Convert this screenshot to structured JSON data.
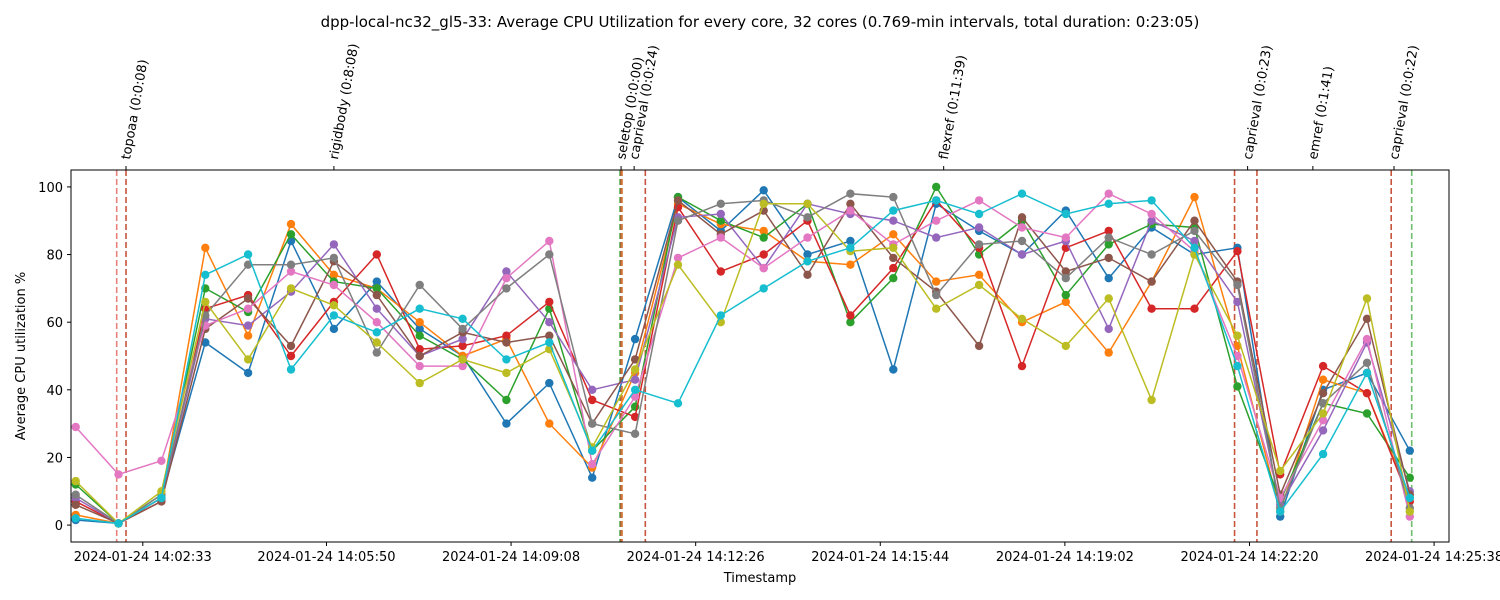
{
  "chart_data": {
    "type": "line",
    "title": "dpp-local-nc32_gl5-33: Average CPU Utilization for every core, 32 cores (0.769-min intervals, total duration: 0:23:05)",
    "xlabel": "Timestamp",
    "ylabel": "Average CPU utilization %",
    "xlim": [
      "2024-01-24 14:01:16",
      "2024-01-24 14:25:54"
    ],
    "ylim": [
      -5,
      105
    ],
    "x_ticks": [
      "2024-01-24 14:02:33",
      "2024-01-24 14:05:50",
      "2024-01-24 14:09:08",
      "2024-01-24 14:12:26",
      "2024-01-24 14:15:44",
      "2024-01-24 14:19:02",
      "2024-01-24 14:22:20",
      "2024-01-24 14:25:38"
    ],
    "y_ticks": [
      0,
      20,
      40,
      60,
      80,
      100
    ],
    "grid": false,
    "legend": "none",
    "x": [
      "14:01:21",
      "14:02:07",
      "14:02:53",
      "14:03:40",
      "14:04:26",
      "14:05:12",
      "14:05:58",
      "14:06:44",
      "14:07:30",
      "14:08:16",
      "14:09:03",
      "14:09:49",
      "14:10:35",
      "14:11:21",
      "14:12:07",
      "14:12:53",
      "14:13:39",
      "14:14:26",
      "14:15:12",
      "14:15:58",
      "14:16:44",
      "14:17:30",
      "14:18:16",
      "14:19:03",
      "14:19:49",
      "14:20:35",
      "14:21:21",
      "14:22:07",
      "14:22:53",
      "14:23:39",
      "14:24:26",
      "14:25:12"
    ],
    "x_date": "2024-01-24",
    "series": [
      {
        "values": [
          1.5,
          0.5,
          8,
          54,
          45,
          84,
          58,
          72,
          58,
          50,
          30,
          42,
          14,
          55,
          97,
          87,
          99,
          80,
          84,
          46,
          95,
          87,
          80,
          93,
          73,
          88,
          80,
          82,
          2.5,
          40,
          45,
          22
        ]
      },
      {
        "values": [
          3,
          0.5,
          8,
          82,
          56,
          89,
          74,
          70,
          60,
          50,
          55,
          30,
          17,
          45,
          95,
          89,
          87,
          78,
          77,
          86,
          72,
          74,
          60,
          66,
          51,
          72,
          97,
          53,
          4,
          43,
          39,
          8
        ]
      },
      {
        "values": [
          12,
          0.5,
          9,
          70,
          63,
          86,
          72,
          70,
          56,
          49,
          37,
          64,
          22,
          35,
          97,
          90,
          85,
          95,
          60,
          73,
          100,
          80,
          90,
          68,
          83,
          89,
          88,
          41,
          7,
          36,
          33,
          14
        ]
      },
      {
        "values": [
          7,
          0.5,
          7,
          64,
          68,
          50,
          66,
          80,
          52,
          53,
          56,
          66,
          37,
          32,
          94,
          75,
          80,
          90,
          62,
          76,
          96,
          82,
          47,
          82,
          87,
          64,
          64,
          81,
          15,
          47,
          39,
          7
        ]
      },
      {
        "values": [
          8,
          0.5,
          8,
          61,
          59,
          69,
          83,
          64,
          50,
          55,
          75,
          60,
          40,
          43,
          91,
          92,
          76,
          95,
          92,
          90,
          85,
          88,
          80,
          84,
          58,
          90,
          84,
          66,
          6,
          28,
          54,
          10
        ]
      },
      {
        "values": [
          6,
          0.5,
          7,
          58,
          67,
          53,
          78,
          68,
          50,
          57,
          54,
          56,
          30,
          49,
          96,
          86,
          93,
          74,
          95,
          79,
          69,
          53,
          91,
          75,
          79,
          72,
          90,
          72,
          9,
          39,
          61,
          9
        ]
      },
      {
        "values": [
          29,
          15,
          19,
          59,
          64,
          75,
          71,
          60,
          47,
          47,
          73,
          84,
          18,
          38,
          79,
          85,
          76,
          85,
          93,
          83,
          90,
          96,
          88,
          85,
          98,
          92,
          81,
          50,
          8,
          31,
          55,
          2.5
        ]
      },
      {
        "values": [
          9,
          0.5,
          9,
          62,
          77,
          77,
          79,
          51,
          71,
          58,
          70,
          80,
          30,
          27,
          90,
          95,
          96,
          91,
          98,
          97,
          68,
          83,
          84,
          73,
          85,
          80,
          87,
          71,
          5,
          36,
          48,
          5
        ]
      },
      {
        "values": [
          13,
          0.5,
          10,
          66,
          49,
          70,
          65,
          54,
          42,
          49,
          45,
          52,
          23,
          46,
          77,
          60,
          95,
          95,
          81,
          82,
          64,
          71,
          61,
          53,
          67,
          37,
          80,
          56,
          16,
          33,
          67,
          4
        ]
      },
      {
        "values": [
          2,
          0.5,
          8,
          74,
          80,
          46,
          62,
          57,
          64,
          61,
          49,
          54,
          22,
          40,
          36,
          62,
          70,
          78,
          82,
          93,
          96,
          92,
          98,
          92,
          95,
          96,
          82,
          47,
          4,
          21,
          45,
          8
        ]
      }
    ]
  }
}
